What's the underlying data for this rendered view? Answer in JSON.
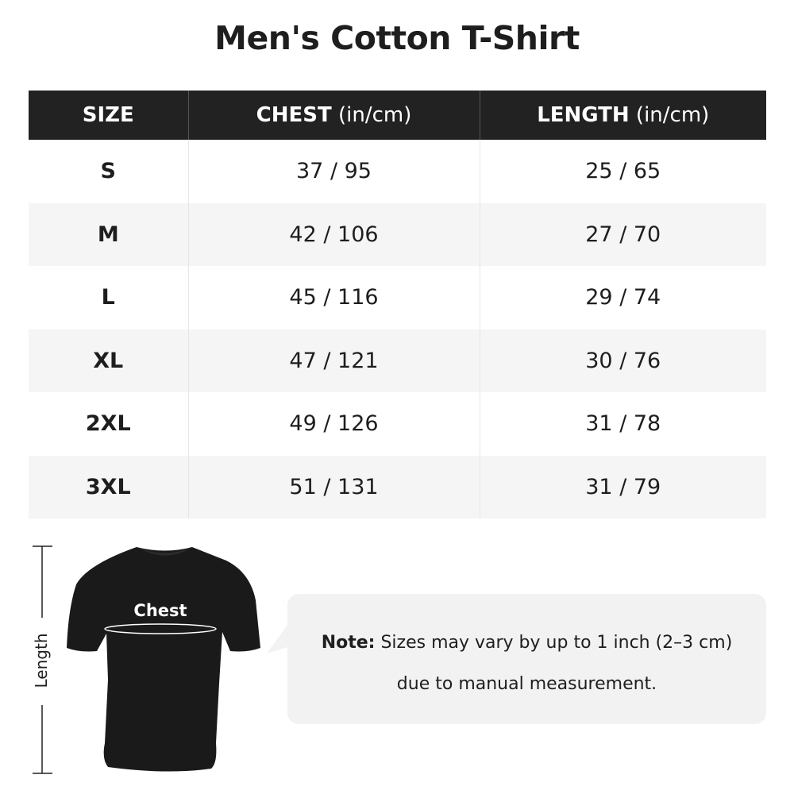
{
  "title": "Men's Cotton T-Shirt",
  "table": {
    "headers": [
      {
        "main": "SIZE",
        "unit": ""
      },
      {
        "main": "CHEST",
        "unit": " (in/cm)"
      },
      {
        "main": "LENGTH",
        "unit": " (in/cm)"
      }
    ],
    "rows": [
      {
        "size": "S",
        "chest": "37 / 95",
        "length": "25 / 65"
      },
      {
        "size": "M",
        "chest": "42 / 106",
        "length": "27 / 70"
      },
      {
        "size": "L",
        "chest": "45 / 116",
        "length": "29 / 74"
      },
      {
        "size": "XL",
        "chest": "47 / 121",
        "length": "30 / 76"
      },
      {
        "size": "2XL",
        "chest": "49 / 126",
        "length": "31 / 78"
      },
      {
        "size": "3XL",
        "chest": "51 / 131",
        "length": "31 / 79"
      }
    ]
  },
  "diagram": {
    "length_label": "Length",
    "chest_label": "Chest",
    "shirt_color": "#1a1a1a"
  },
  "note": {
    "label": "Note:",
    "line1": " Sizes may vary by up to 1 inch (2–3 cm)",
    "line2": "due to manual measurement."
  }
}
